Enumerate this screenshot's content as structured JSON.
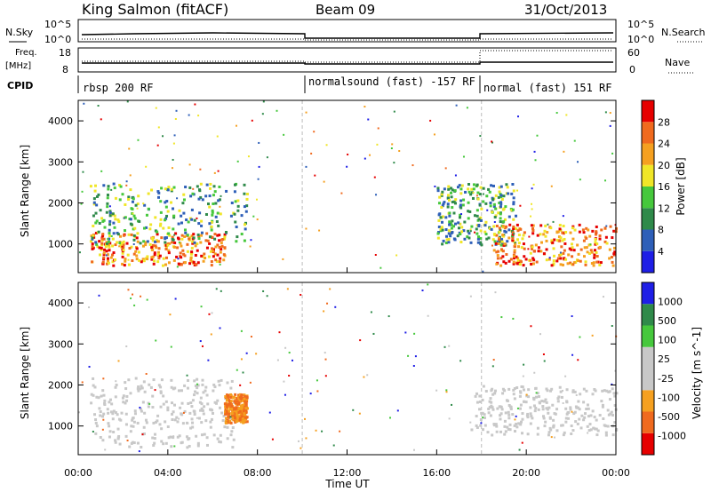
{
  "header": {
    "station": "King Salmon (fitACF)",
    "beam": "Beam 09",
    "date": "31/Oct/2013"
  },
  "strip_labels": {
    "nsky": "N.Sky",
    "nsky_ticks": [
      "10^5",
      "10^0"
    ],
    "freq": "Freq.",
    "freq_unit": "[MHz]",
    "freq_ticks": [
      "18",
      "8"
    ],
    "cpid": "CPID",
    "nsearch": "N.Search",
    "nsearch_ticks": [
      "10^5",
      "10^0"
    ],
    "nave": "Nave",
    "nave_ticks": [
      "60",
      "0"
    ]
  },
  "cpid_segments": [
    {
      "label": "rbsp 200 RF",
      "start_hour": 0.0
    },
    {
      "label": "normalsound (fast) -157 RF",
      "start_hour": 10.0
    },
    {
      "label": "normal (fast) 151 RF",
      "start_hour": 18.0
    }
  ],
  "x_axis": {
    "label": "Time UT",
    "ticks": [
      "00:00",
      "04:00",
      "08:00",
      "12:00",
      "16:00",
      "20:00",
      "00:00"
    ]
  },
  "colors": {
    "power": [
      "#1e1ee6",
      "#2e5fb8",
      "#2f8a4a",
      "#46c83c",
      "#f0e628",
      "#f5a020",
      "#f06a1e",
      "#e60000"
    ],
    "velocity": [
      "#e60000",
      "#f06a1e",
      "#f5a020",
      "#c8c8c8",
      "#c8c8c8",
      "#46c83c",
      "#2f8a4a",
      "#1e1ee6"
    ]
  },
  "chart_data": [
    {
      "type": "heatmap",
      "ylabel": "Slant Range [km]",
      "yticks": [
        "1000",
        "2000",
        "3000",
        "4000"
      ],
      "ylim": [
        300,
        4500
      ],
      "xlim": [
        0,
        24
      ],
      "colorbar": {
        "label": "Power [dB]",
        "ticks": [
          "4",
          "8",
          "12",
          "16",
          "20",
          "24",
          "28"
        ],
        "range": [
          0,
          30
        ]
      },
      "regions": [
        {
          "hours": [
            0.5,
            6.5
          ],
          "ranges_km": [
            500,
            1300
          ],
          "power": "20-30"
        },
        {
          "hours": [
            0.5,
            7.5
          ],
          "ranges_km": [
            1000,
            2500
          ],
          "power": "8-16"
        },
        {
          "hours": [
            16.0,
            19.5
          ],
          "ranges_km": [
            1000,
            2500
          ],
          "power": "8-16"
        },
        {
          "hours": [
            18.5,
            24.0
          ],
          "ranges_km": [
            500,
            1500
          ],
          "power": "12-28"
        }
      ]
    },
    {
      "type": "heatmap",
      "ylabel": "Slant Range [km]",
      "yticks": [
        "1000",
        "2000",
        "3000",
        "4000"
      ],
      "ylim": [
        300,
        4500
      ],
      "xlim": [
        0,
        24
      ],
      "colorbar": {
        "label": "Velocity [m s^-1]",
        "ticks": [
          "1000",
          "500",
          "100",
          "25",
          "-25",
          "-100",
          "-500",
          "-1000"
        ]
      },
      "regions": [
        {
          "hours": [
            0.5,
            7.0
          ],
          "ranges_km": [
            500,
            2200
          ],
          "velocity": "-25..25"
        },
        {
          "hours": [
            6.5,
            7.5
          ],
          "ranges_km": [
            1100,
            1800
          ],
          "velocity": "-100..-500"
        },
        {
          "hours": [
            17.5,
            24.0
          ],
          "ranges_km": [
            800,
            2000
          ],
          "velocity": "-25..25"
        }
      ]
    }
  ]
}
